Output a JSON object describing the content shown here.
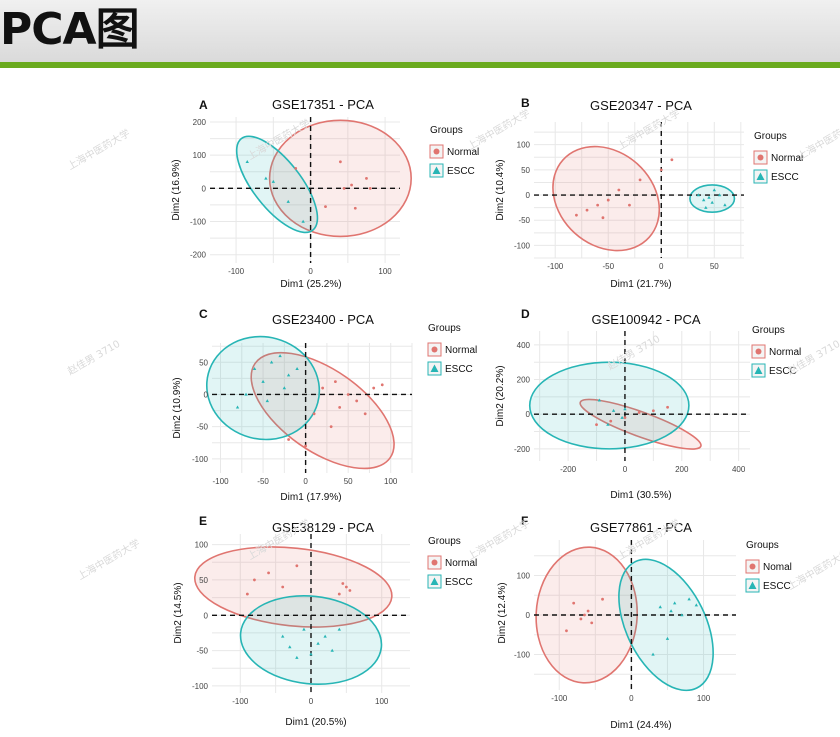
{
  "page": {
    "title": "PCA图"
  },
  "watermarks": [
    "上海中医药大学",
    "赵佳男 3710"
  ],
  "colors": {
    "normal": "#e07570",
    "escc": "#27b5b5",
    "header_line": "#6aaa1e"
  },
  "chart_data": [
    {
      "type": "scatter",
      "panel": "A",
      "title": "GSE17351 - PCA",
      "xlabel": "Dim1 (25.2%)",
      "ylabel": "Dim2 (16.9%)",
      "xlim": [
        -135,
        120
      ],
      "ylim": [
        -225,
        215
      ],
      "xticks": [
        -100,
        0,
        100
      ],
      "yticks": [
        -200,
        -100,
        0,
        100,
        200
      ],
      "xtick_labels": [
        "-100",
        "0",
        "100"
      ],
      "ytick_labels": [
        "-200",
        "-100",
        "0",
        "100",
        "200"
      ],
      "legend": {
        "title": "Groups",
        "position": "right",
        "items": [
          "Normal",
          "ESCC"
        ]
      },
      "series": [
        {
          "name": "Normal",
          "points": [
            [
              40,
              80
            ],
            [
              80,
              0
            ],
            [
              -20,
              60
            ],
            [
              60,
              -60
            ],
            [
              20,
              -55
            ],
            [
              45,
              0
            ],
            [
              75,
              30
            ],
            [
              55,
              10
            ]
          ],
          "ellipse": {
            "cx": 40,
            "cy": 30,
            "rx": 95,
            "ry": 175,
            "angle": 0
          }
        },
        {
          "name": "ESCC",
          "points": [
            [
              -85,
              80
            ],
            [
              -50,
              20
            ],
            [
              -30,
              -40
            ],
            [
              -10,
              -100
            ],
            [
              -60,
              30
            ]
          ],
          "ellipse": {
            "cx": -45,
            "cy": 12,
            "rx": 32,
            "ry": 175,
            "angle": 38
          }
        }
      ]
    },
    {
      "type": "scatter",
      "panel": "B",
      "title": "GSE20347 - PCA",
      "xlabel": "Dim1 (21.7%)",
      "ylabel": "Dim2 (10.4%)",
      "xlim": [
        -120,
        78
      ],
      "ylim": [
        -125,
        145
      ],
      "xticks": [
        -100,
        -50,
        0,
        50
      ],
      "yticks": [
        -100,
        -50,
        0,
        50,
        100
      ],
      "xtick_labels": [
        "-100",
        "-50",
        "0",
        "50"
      ],
      "ytick_labels": [
        "-100",
        "-50",
        "0",
        "50",
        "100"
      ],
      "legend": {
        "title": "Groups",
        "position": "right",
        "items": [
          "Normal",
          "ESCC"
        ]
      },
      "series": [
        {
          "name": "Normal",
          "points": [
            [
              -70,
              -30
            ],
            [
              -50,
              -10
            ],
            [
              -40,
              10
            ],
            [
              -20,
              30
            ],
            [
              0,
              50
            ],
            [
              10,
              70
            ],
            [
              -60,
              -20
            ],
            [
              -30,
              -20
            ],
            [
              -80,
              -40
            ],
            [
              -55,
              -45
            ]
          ],
          "ellipse": {
            "cx": -52,
            "cy": -7,
            "rx": 44,
            "ry": 115,
            "angle": 48
          }
        },
        {
          "name": "ESCC",
          "points": [
            [
              35,
              0
            ],
            [
              45,
              -5
            ],
            [
              55,
              0
            ],
            [
              48,
              -15
            ],
            [
              40,
              -10
            ],
            [
              60,
              -20
            ],
            [
              50,
              10
            ],
            [
              42,
              -25
            ]
          ],
          "ellipse": {
            "cx": 48,
            "cy": -7,
            "rx": 21,
            "ry": 27,
            "angle": 0
          }
        }
      ]
    },
    {
      "type": "scatter",
      "panel": "C",
      "title": "GSE23400 - PCA",
      "xlabel": "Dim1 (17.9%)",
      "ylabel": "Dim2 (10.9%)",
      "xlim": [
        -110,
        125
      ],
      "ylim": [
        -122,
        80
      ],
      "xticks": [
        -100,
        -50,
        0,
        50,
        100
      ],
      "yticks": [
        -100,
        -50,
        0,
        50
      ],
      "xtick_labels": [
        "-100",
        "-50",
        "0",
        "50",
        "100"
      ],
      "ytick_labels": [
        "-100",
        "-50",
        "0",
        "50"
      ],
      "legend": {
        "title": "Groups",
        "position": "right",
        "items": [
          "Normal",
          "ESCC"
        ]
      },
      "series": [
        {
          "name": "Normal",
          "points": [
            [
              20,
              10
            ],
            [
              40,
              -20
            ],
            [
              60,
              -10
            ],
            [
              80,
              10
            ],
            [
              30,
              -50
            ],
            [
              0,
              -80
            ],
            [
              50,
              0
            ],
            [
              70,
              -30
            ],
            [
              90,
              15
            ],
            [
              10,
              -30
            ],
            [
              -20,
              -70
            ],
            [
              35,
              20
            ]
          ],
          "ellipse": {
            "cx": 20,
            "cy": -25,
            "rx": 48,
            "ry": 128,
            "angle": 55
          }
        },
        {
          "name": "ESCC",
          "points": [
            [
              -60,
              40
            ],
            [
              -40,
              50
            ],
            [
              -20,
              30
            ],
            [
              -50,
              20
            ],
            [
              -70,
              0
            ],
            [
              -30,
              60
            ],
            [
              -10,
              40
            ],
            [
              -45,
              -10
            ],
            [
              -80,
              -20
            ],
            [
              -25,
              10
            ]
          ],
          "ellipse": {
            "cx": -50,
            "cy": 10,
            "rx": 60,
            "ry": 88,
            "angle": 75
          }
        }
      ]
    },
    {
      "type": "scatter",
      "panel": "D",
      "title": "GSE100942 - PCA",
      "xlabel": "Dim1 (30.5%)",
      "ylabel": "Dim2 (20.2%)",
      "xlim": [
        -320,
        440
      ],
      "ylim": [
        -270,
        480
      ],
      "xticks": [
        -200,
        0,
        200,
        400
      ],
      "yticks": [
        -200,
        0,
        200,
        400
      ],
      "xtick_labels": [
        "-200",
        "0",
        "200",
        "400"
      ],
      "ytick_labels": [
        "-200",
        "0",
        "200",
        "400"
      ],
      "legend": {
        "title": "Groups",
        "position": "right",
        "items": [
          "Normal",
          "ESCC"
        ]
      },
      "series": [
        {
          "name": "Normal",
          "points": [
            [
              -100,
              -60
            ],
            [
              0,
              -20
            ],
            [
              50,
              10
            ],
            [
              100,
              20
            ],
            [
              150,
              40
            ],
            [
              -50,
              -40
            ]
          ],
          "ellipse": {
            "cx": 55,
            "cy": -58,
            "rx": 43,
            "ry": 370,
            "angle": 70
          }
        },
        {
          "name": "ESCC",
          "points": [
            [
              -90,
              80
            ],
            [
              -40,
              20
            ],
            [
              -10,
              -20
            ],
            [
              0,
              30
            ],
            [
              -60,
              -60
            ]
          ],
          "ellipse": {
            "cx": -55,
            "cy": 50,
            "rx": 280,
            "ry": 250,
            "angle": 0
          }
        }
      ]
    },
    {
      "type": "scatter",
      "panel": "E",
      "title": "GSE38129 - PCA",
      "xlabel": "Dim1 (20.5%)",
      "ylabel": "Dim2 (14.5%)",
      "xlim": [
        -140,
        140
      ],
      "ylim": [
        -110,
        115
      ],
      "xticks": [
        -100,
        0,
        100
      ],
      "yticks": [
        -100,
        -50,
        0,
        50,
        100
      ],
      "xtick_labels": [
        "-100",
        "0",
        "100"
      ],
      "ytick_labels": [
        "-100",
        "-50",
        "0",
        "50",
        "100"
      ],
      "legend": {
        "title": "Groups",
        "position": "right",
        "items": [
          "Normal",
          "ESCC"
        ]
      },
      "series": [
        {
          "name": "Normal",
          "points": [
            [
              -80,
              50
            ],
            [
              -60,
              60
            ],
            [
              -40,
              40
            ],
            [
              40,
              30
            ],
            [
              50,
              40
            ],
            [
              55,
              35
            ],
            [
              -20,
              70
            ],
            [
              45,
              45
            ],
            [
              -90,
              30
            ]
          ],
          "ellipse": {
            "cx": -25,
            "cy": 40,
            "rx": 140,
            "ry": 55,
            "angle": -6
          }
        },
        {
          "name": "ESCC",
          "points": [
            [
              -40,
              -30
            ],
            [
              -10,
              -20
            ],
            [
              10,
              -40
            ],
            [
              30,
              -50
            ],
            [
              -20,
              -60
            ],
            [
              20,
              -30
            ],
            [
              40,
              -20
            ],
            [
              0,
              -55
            ],
            [
              -30,
              -45
            ]
          ],
          "ellipse": {
            "cx": 0,
            "cy": -35,
            "rx": 100,
            "ry": 62,
            "angle": -6
          }
        }
      ]
    },
    {
      "type": "scatter",
      "panel": "F",
      "title": "GSE77861 - PCA",
      "xlabel": "Dim1 (24.4%)",
      "ylabel": "Dim2 (12.4%)",
      "xlim": [
        -135,
        145
      ],
      "ylim": [
        -190,
        190
      ],
      "xticks": [
        -100,
        0,
        100
      ],
      "yticks": [
        -100,
        0,
        100
      ],
      "xtick_labels": [
        "-100",
        "0",
        "100"
      ],
      "ytick_labels": [
        "-100",
        "0",
        "100"
      ],
      "legend": {
        "title": "Groups",
        "position": "right",
        "items": [
          "Nomal",
          "ESCC"
        ]
      },
      "series": [
        {
          "name": "Nomal",
          "points": [
            [
              -80,
              30
            ],
            [
              -60,
              10
            ],
            [
              -70,
              -10
            ],
            [
              -40,
              40
            ],
            [
              -90,
              -40
            ],
            [
              -55,
              -20
            ],
            [
              -65,
              0
            ]
          ],
          "ellipse": {
            "cx": -62,
            "cy": 0,
            "rx": 70,
            "ry": 172,
            "angle": -3
          }
        },
        {
          "name": "ESCC",
          "points": [
            [
              40,
              20
            ],
            [
              60,
              30
            ],
            [
              70,
              0
            ],
            [
              80,
              40
            ],
            [
              50,
              -60
            ],
            [
              30,
              -100
            ],
            [
              90,
              25
            ],
            [
              55,
              10
            ]
          ],
          "ellipse": {
            "cx": 48,
            "cy": -25,
            "rx": 55,
            "ry": 178,
            "angle": 26
          }
        }
      ]
    }
  ]
}
